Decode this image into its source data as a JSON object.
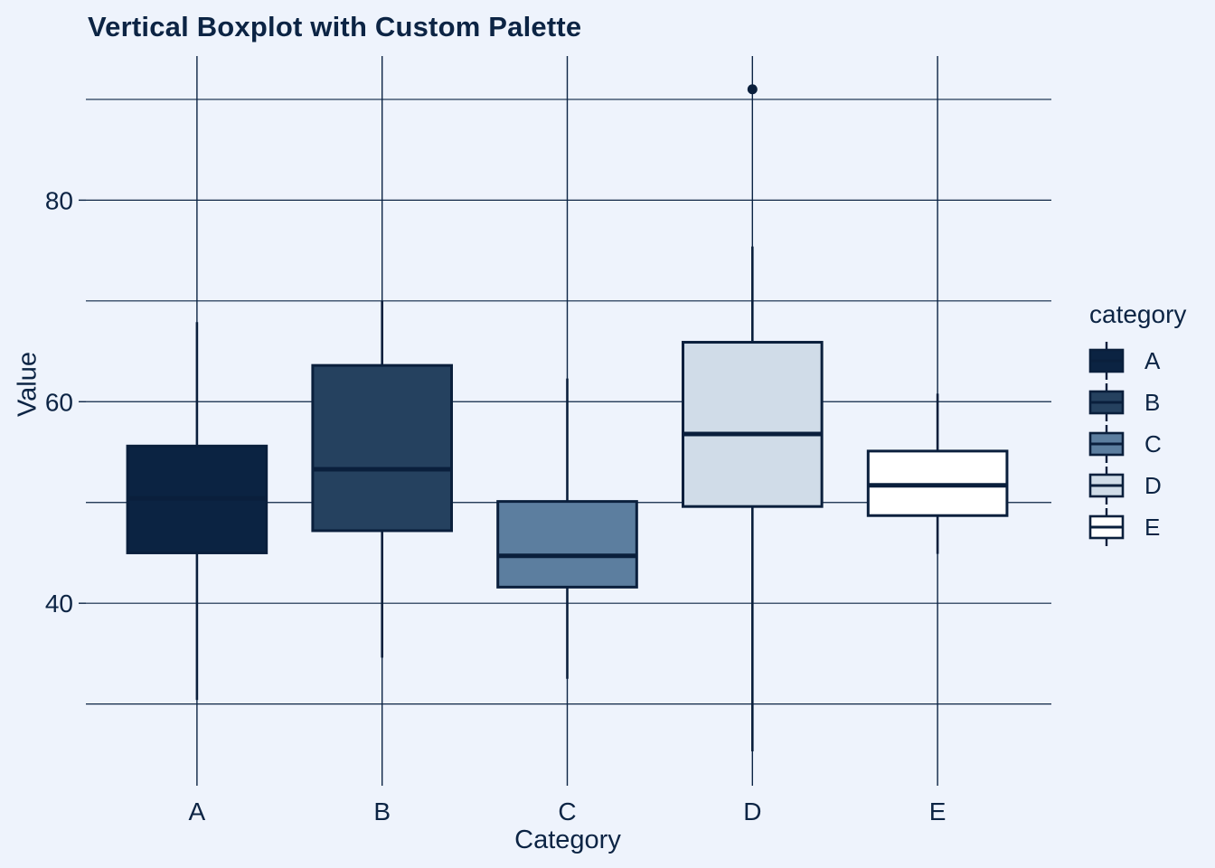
{
  "chart_data": {
    "type": "boxplot",
    "title": "Vertical Boxplot with Custom Palette",
    "xlabel": "Category",
    "ylabel": "Value",
    "categories": [
      "A",
      "B",
      "C",
      "D",
      "E"
    ],
    "y_tick_labels": [
      40,
      60,
      80
    ],
    "y_gridlines": [
      30,
      40,
      50,
      60,
      70,
      80,
      90
    ],
    "ylim": [
      22.7,
      94.3
    ],
    "grid": "on",
    "legend": {
      "title": "category",
      "position": "right"
    },
    "series": [
      {
        "category": "A",
        "fill": "#0b2342",
        "low": 30.4,
        "q1": 45.0,
        "median": 50.4,
        "q3": 55.6,
        "high": 67.9,
        "outliers": []
      },
      {
        "category": "B",
        "fill": "#25415f",
        "low": 34.6,
        "q1": 47.2,
        "median": 53.3,
        "q3": 63.6,
        "high": 70.0,
        "outliers": []
      },
      {
        "category": "C",
        "fill": "#5c7e9f",
        "low": 32.5,
        "q1": 41.6,
        "median": 44.7,
        "q3": 50.1,
        "high": 62.3,
        "outliers": []
      },
      {
        "category": "D",
        "fill": "#d0dce8",
        "low": 25.3,
        "q1": 49.6,
        "median": 56.8,
        "q3": 65.9,
        "high": 75.4,
        "outliers": [
          91
        ]
      },
      {
        "category": "E",
        "fill": "#ffffff",
        "low": 44.9,
        "q1": 48.7,
        "median": 51.7,
        "q3": 55.1,
        "high": 60.8,
        "outliers": []
      }
    ],
    "colors": {
      "ink": "#0c2444",
      "line": "#0a1f3c",
      "background": "#eef3fc"
    }
  }
}
